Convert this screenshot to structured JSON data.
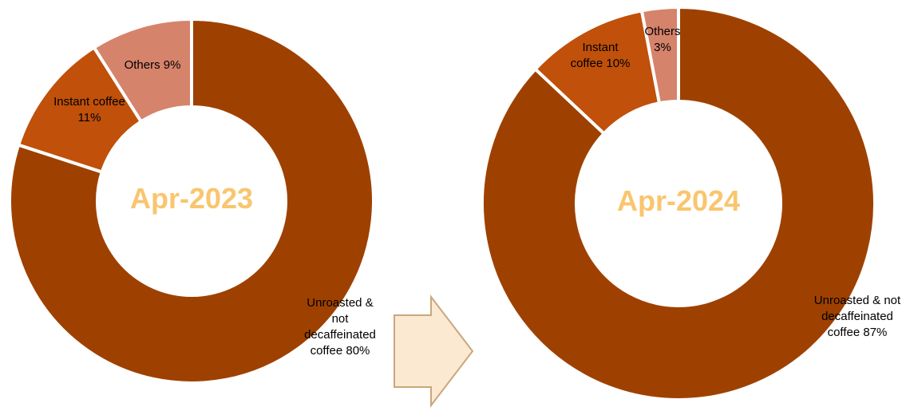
{
  "chart_data": [
    {
      "type": "donut",
      "title": "Apr-2023",
      "categories": [
        "Unroasted & not decaffeinated coffee",
        "Instant coffee",
        "Others"
      ],
      "values": [
        80,
        11,
        9
      ],
      "value_labels": [
        "80%",
        "11%",
        "9%"
      ],
      "colors": [
        "#9e4100",
        "#c0500a",
        "#d6836b"
      ]
    },
    {
      "type": "donut",
      "title": "Apr-2024",
      "categories": [
        "Unroasted & not decaffeinated coffee",
        "Instant coffee",
        "Others"
      ],
      "values": [
        87,
        10,
        3
      ],
      "value_labels": [
        "87%",
        "10%",
        "3%"
      ],
      "colors": [
        "#9e4100",
        "#c0500a",
        "#d6836b"
      ]
    }
  ]
}
